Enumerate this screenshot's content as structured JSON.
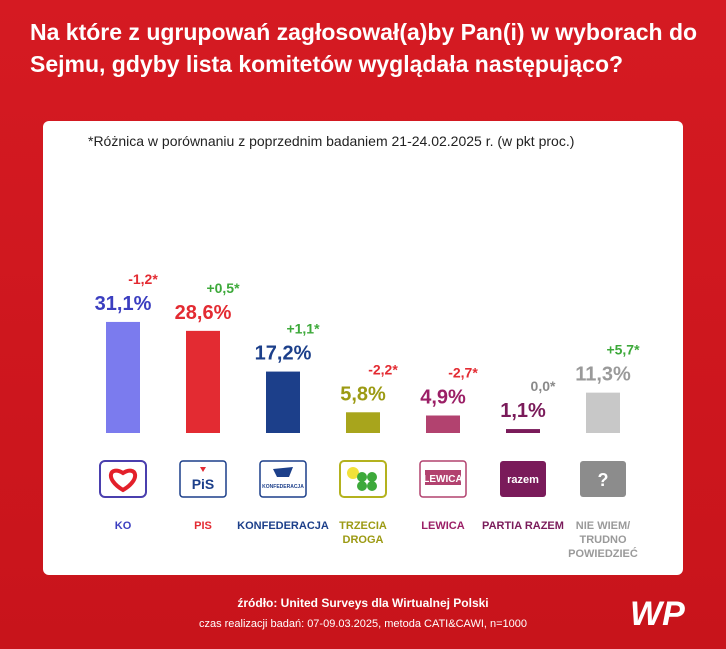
{
  "title": "Na które z ugrupowań zagłosował(a)by Pan(i) w wyborach do Sejmu, gdyby lista komitetów wyglądała następująco?",
  "note": "*Różnica w porównaniu z poprzednim badaniem 21-24.02.2025 r. (w pkt proc.)",
  "source": "źródło: United Surveys dla Wirtualnej Polski",
  "fieldwork": "czas realizacji badań: 07-09.03.2025, metoda CATI&CAWI, n=1000",
  "brand": "WP",
  "chart_data": {
    "type": "bar",
    "title": "Na które z ugrupowań zagłosował(a)by Pan(i) w wyborach do Sejmu, gdyby lista komitetów wyglądała następująco?",
    "categories": [
      "KO",
      "PIS",
      "KONFEDERACJA",
      "TRZECIA DROGA",
      "LEWICA",
      "PARTIA RAZEM",
      "NIE WIEM/ TRUDNO POWIEDZIEĆ"
    ],
    "category_lines": [
      [
        "KO"
      ],
      [
        "PIS"
      ],
      [
        "KONFEDERACJA"
      ],
      [
        "TRZECIA",
        "DROGA"
      ],
      [
        "LEWICA"
      ],
      [
        "PARTIA RAZEM"
      ],
      [
        "NIE WIEM/",
        "TRUDNO",
        "POWIEDZIEĆ"
      ]
    ],
    "values": [
      31.1,
      28.6,
      17.2,
      5.8,
      4.9,
      1.1,
      11.3
    ],
    "value_labels": [
      "31,1%",
      "28,6%",
      "17,2%",
      "5,8%",
      "4,9%",
      "1,1%",
      "11,3%"
    ],
    "changes": [
      -1.2,
      0.5,
      1.1,
      -2.2,
      -2.7,
      0.0,
      5.7
    ],
    "change_labels": [
      "-1,2*",
      "+0,5*",
      "+1,1*",
      "-2,2*",
      "-2,7*",
      "0,0*",
      "+5,7*"
    ],
    "colors": [
      "#7b7bee",
      "#e32b32",
      "#1c3f8a",
      "#a8a51c",
      "#b2426f",
      "#7a1b5a",
      "#c8c8c8"
    ],
    "label_colors": [
      "#3b3ec0",
      "#e32b32",
      "#1c3f8a",
      "#9c9a13",
      "#9b1f66",
      "#7a1b5a",
      "#9a9a9a"
    ],
    "logos": [
      "heart-icon",
      "pis-logo",
      "konfederacja-logo",
      "clover-icon",
      "lewica-logo",
      "razem-logo",
      "question-icon"
    ],
    "logo_texts": [
      "",
      "PiS",
      "KONFEDERACJA",
      "",
      "LEWICA",
      "razem",
      "?"
    ],
    "change_colors": {
      "negative": "#e32b32",
      "positive": "#3da93a",
      "zero": "#8a8a8a"
    },
    "ylim": [
      0,
      35
    ],
    "xlabel": "",
    "ylabel": ""
  }
}
